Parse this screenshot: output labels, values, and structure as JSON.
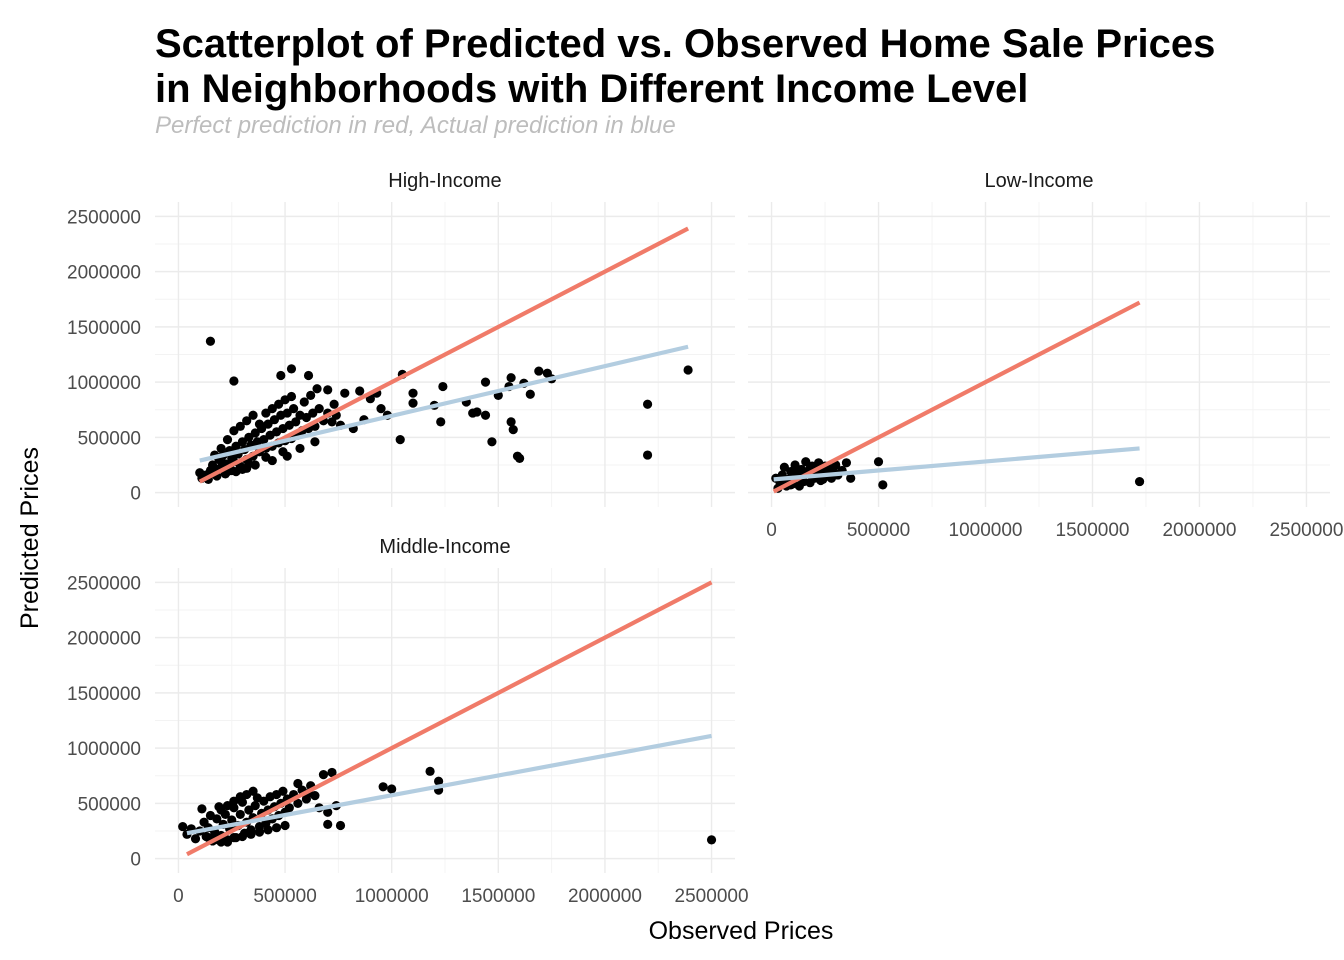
{
  "title_line1": "Scatterplot of Predicted vs. Observed Home Sale Prices",
  "title_line2": "in Neighborhoods with Different Income Level",
  "subtitle": "Perfect prediction in red, Actual prediction in blue",
  "colors": {
    "perfect_line": "#f07b69",
    "fit_line": "#b3cde0",
    "points": "#000000"
  },
  "chart_data": {
    "type": "scatter",
    "xlabel": "Observed Prices",
    "ylabel": "Predicted Prices",
    "xlim": [
      0,
      2500000
    ],
    "ylim": [
      0,
      2500000
    ],
    "ticks": [
      "0",
      "500000",
      "1000000",
      "1500000",
      "2000000",
      "2500000"
    ],
    "grid": true,
    "facets": [
      {
        "label": "High-Income",
        "perfect_line": [
          [
            100000,
            100000
          ],
          [
            2390000,
            2390000
          ]
        ],
        "fit_line": [
          [
            100000,
            290000
          ],
          [
            2390000,
            1320000
          ]
        ],
        "points": [
          [
            150000,
            1370000
          ],
          [
            260000,
            1010000
          ],
          [
            530000,
            1120000
          ],
          [
            480000,
            1060000
          ],
          [
            610000,
            1060000
          ],
          [
            1050000,
            1070000
          ],
          [
            1100000,
            900000
          ],
          [
            1240000,
            960000
          ],
          [
            1440000,
            1000000
          ],
          [
            1560000,
            1040000
          ],
          [
            1690000,
            1100000
          ],
          [
            1730000,
            1080000
          ],
          [
            2390000,
            1110000
          ],
          [
            2200000,
            800000
          ],
          [
            1350000,
            820000
          ],
          [
            1380000,
            720000
          ],
          [
            1230000,
            640000
          ],
          [
            1400000,
            730000
          ],
          [
            1440000,
            700000
          ],
          [
            1560000,
            640000
          ],
          [
            1570000,
            570000
          ],
          [
            1470000,
            460000
          ],
          [
            1590000,
            330000
          ],
          [
            1600000,
            310000
          ],
          [
            2200000,
            340000
          ],
          [
            1040000,
            480000
          ],
          [
            1100000,
            810000
          ],
          [
            980000,
            700000
          ],
          [
            1200000,
            790000
          ],
          [
            1500000,
            880000
          ],
          [
            1550000,
            960000
          ],
          [
            1650000,
            890000
          ],
          [
            1750000,
            1030000
          ],
          [
            1620000,
            990000
          ],
          [
            650000,
            940000
          ],
          [
            700000,
            930000
          ],
          [
            780000,
            900000
          ],
          [
            850000,
            920000
          ],
          [
            900000,
            850000
          ],
          [
            950000,
            760000
          ],
          [
            870000,
            660000
          ],
          [
            820000,
            580000
          ],
          [
            760000,
            610000
          ],
          [
            730000,
            800000
          ],
          [
            930000,
            900000
          ],
          [
            100000,
            180000
          ],
          [
            110000,
            130000
          ],
          [
            130000,
            160000
          ],
          [
            150000,
            200000
          ],
          [
            160000,
            250000
          ],
          [
            180000,
            210000
          ],
          [
            190000,
            300000
          ],
          [
            200000,
            230000
          ],
          [
            210000,
            340000
          ],
          [
            220000,
            260000
          ],
          [
            230000,
            190000
          ],
          [
            240000,
            380000
          ],
          [
            250000,
            310000
          ],
          [
            260000,
            280000
          ],
          [
            270000,
            420000
          ],
          [
            280000,
            350000
          ],
          [
            290000,
            240000
          ],
          [
            300000,
            460000
          ],
          [
            310000,
            390000
          ],
          [
            320000,
            300000
          ],
          [
            330000,
            500000
          ],
          [
            340000,
            430000
          ],
          [
            350000,
            330000
          ],
          [
            360000,
            540000
          ],
          [
            370000,
            460000
          ],
          [
            380000,
            370000
          ],
          [
            390000,
            580000
          ],
          [
            400000,
            480000
          ],
          [
            410000,
            400000
          ],
          [
            420000,
            620000
          ],
          [
            430000,
            520000
          ],
          [
            440000,
            420000
          ],
          [
            450000,
            660000
          ],
          [
            460000,
            550000
          ],
          [
            470000,
            450000
          ],
          [
            480000,
            700000
          ],
          [
            490000,
            580000
          ],
          [
            500000,
            470000
          ],
          [
            510000,
            720000
          ],
          [
            520000,
            610000
          ],
          [
            530000,
            490000
          ],
          [
            540000,
            760000
          ],
          [
            550000,
            640000
          ],
          [
            560000,
            520000
          ],
          [
            570000,
            700000
          ],
          [
            580000,
            560000
          ],
          [
            590000,
            820000
          ],
          [
            600000,
            680000
          ],
          [
            610000,
            580000
          ],
          [
            620000,
            880000
          ],
          [
            630000,
            720000
          ],
          [
            640000,
            600000
          ],
          [
            660000,
            760000
          ],
          [
            680000,
            650000
          ],
          [
            700000,
            720000
          ],
          [
            720000,
            640000
          ],
          [
            740000,
            700000
          ],
          [
            230000,
            480000
          ],
          [
            260000,
            560000
          ],
          [
            290000,
            600000
          ],
          [
            320000,
            650000
          ],
          [
            350000,
            700000
          ],
          [
            380000,
            620000
          ],
          [
            410000,
            720000
          ],
          [
            440000,
            760000
          ],
          [
            470000,
            800000
          ],
          [
            500000,
            840000
          ],
          [
            530000,
            870000
          ],
          [
            200000,
            400000
          ],
          [
            170000,
            340000
          ],
          [
            250000,
            200000
          ],
          [
            330000,
            260000
          ],
          [
            410000,
            320000
          ],
          [
            490000,
            370000
          ],
          [
            570000,
            400000
          ],
          [
            640000,
            460000
          ],
          [
            300000,
            210000
          ],
          [
            360000,
            250000
          ],
          [
            440000,
            290000
          ],
          [
            510000,
            330000
          ],
          [
            140000,
            120000
          ],
          [
            180000,
            150000
          ],
          [
            220000,
            170000
          ],
          [
            270000,
            190000
          ],
          [
            320000,
            220000
          ]
        ]
      },
      {
        "label": "Low-Income",
        "perfect_line": [
          [
            10000,
            10000
          ],
          [
            1720000,
            1720000
          ]
        ],
        "fit_line": [
          [
            10000,
            120000
          ],
          [
            1720000,
            400000
          ]
        ],
        "points": [
          [
            1720000,
            100000
          ],
          [
            520000,
            70000
          ],
          [
            500000,
            280000
          ],
          [
            370000,
            130000
          ],
          [
            350000,
            270000
          ],
          [
            330000,
            200000
          ],
          [
            20000,
            130000
          ],
          [
            30000,
            40000
          ],
          [
            40000,
            90000
          ],
          [
            50000,
            160000
          ],
          [
            60000,
            230000
          ],
          [
            70000,
            60000
          ],
          [
            80000,
            120000
          ],
          [
            90000,
            190000
          ],
          [
            100000,
            80000
          ],
          [
            110000,
            250000
          ],
          [
            120000,
            140000
          ],
          [
            130000,
            60000
          ],
          [
            140000,
            210000
          ],
          [
            150000,
            100000
          ],
          [
            160000,
            280000
          ],
          [
            170000,
            170000
          ],
          [
            180000,
            90000
          ],
          [
            190000,
            240000
          ],
          [
            200000,
            130000
          ],
          [
            210000,
            200000
          ],
          [
            220000,
            270000
          ],
          [
            230000,
            110000
          ],
          [
            240000,
            180000
          ],
          [
            250000,
            240000
          ],
          [
            260000,
            150000
          ],
          [
            270000,
            220000
          ],
          [
            280000,
            130000
          ],
          [
            290000,
            190000
          ],
          [
            300000,
            250000
          ],
          [
            310000,
            160000
          ],
          [
            60000,
            110000
          ],
          [
            90000,
            70000
          ],
          [
            120000,
            200000
          ],
          [
            150000,
            170000
          ],
          [
            180000,
            220000
          ],
          [
            210000,
            150000
          ],
          [
            240000,
            120000
          ],
          [
            270000,
            170000
          ]
        ]
      },
      {
        "label": "Middle-Income",
        "perfect_line": [
          [
            40000,
            40000
          ],
          [
            2500000,
            2500000
          ]
        ],
        "fit_line": [
          [
            40000,
            230000
          ],
          [
            2500000,
            1110000
          ]
        ],
        "points": [
          [
            2500000,
            170000
          ],
          [
            1180000,
            790000
          ],
          [
            1220000,
            700000
          ],
          [
            1220000,
            620000
          ],
          [
            960000,
            650000
          ],
          [
            1000000,
            630000
          ],
          [
            760000,
            300000
          ],
          [
            700000,
            310000
          ],
          [
            720000,
            780000
          ],
          [
            680000,
            760000
          ],
          [
            560000,
            680000
          ],
          [
            610000,
            590000
          ],
          [
            660000,
            460000
          ],
          [
            700000,
            420000
          ],
          [
            740000,
            480000
          ],
          [
            20000,
            290000
          ],
          [
            40000,
            220000
          ],
          [
            60000,
            270000
          ],
          [
            80000,
            180000
          ],
          [
            100000,
            250000
          ],
          [
            110000,
            450000
          ],
          [
            120000,
            330000
          ],
          [
            130000,
            200000
          ],
          [
            140000,
            280000
          ],
          [
            150000,
            390000
          ],
          [
            160000,
            160000
          ],
          [
            170000,
            240000
          ],
          [
            180000,
            360000
          ],
          [
            190000,
            470000
          ],
          [
            200000,
            210000
          ],
          [
            210000,
            310000
          ],
          [
            220000,
            400000
          ],
          [
            230000,
            150000
          ],
          [
            240000,
            270000
          ],
          [
            250000,
            350000
          ],
          [
            260000,
            460000
          ],
          [
            270000,
            190000
          ],
          [
            280000,
            300000
          ],
          [
            290000,
            400000
          ],
          [
            300000,
            510000
          ],
          [
            310000,
            230000
          ],
          [
            320000,
            330000
          ],
          [
            330000,
            440000
          ],
          [
            340000,
            260000
          ],
          [
            350000,
            370000
          ],
          [
            360000,
            480000
          ],
          [
            370000,
            550000
          ],
          [
            380000,
            290000
          ],
          [
            390000,
            410000
          ],
          [
            400000,
            520000
          ],
          [
            410000,
            320000
          ],
          [
            420000,
            440000
          ],
          [
            430000,
            560000
          ],
          [
            440000,
            360000
          ],
          [
            450000,
            470000
          ],
          [
            460000,
            580000
          ],
          [
            470000,
            390000
          ],
          [
            480000,
            500000
          ],
          [
            490000,
            610000
          ],
          [
            500000,
            420000
          ],
          [
            510000,
            540000
          ],
          [
            520000,
            460000
          ],
          [
            540000,
            580000
          ],
          [
            560000,
            500000
          ],
          [
            580000,
            620000
          ],
          [
            600000,
            540000
          ],
          [
            620000,
            660000
          ],
          [
            640000,
            570000
          ],
          [
            200000,
            440000
          ],
          [
            230000,
            480000
          ],
          [
            260000,
            520000
          ],
          [
            290000,
            560000
          ],
          [
            320000,
            580000
          ],
          [
            350000,
            610000
          ],
          [
            140000,
            190000
          ],
          [
            170000,
            170000
          ],
          [
            200000,
            150000
          ],
          [
            230000,
            170000
          ],
          [
            260000,
            190000
          ],
          [
            300000,
            200000
          ],
          [
            340000,
            220000
          ],
          [
            380000,
            240000
          ],
          [
            420000,
            260000
          ],
          [
            460000,
            280000
          ],
          [
            500000,
            300000
          ]
        ]
      }
    ]
  }
}
